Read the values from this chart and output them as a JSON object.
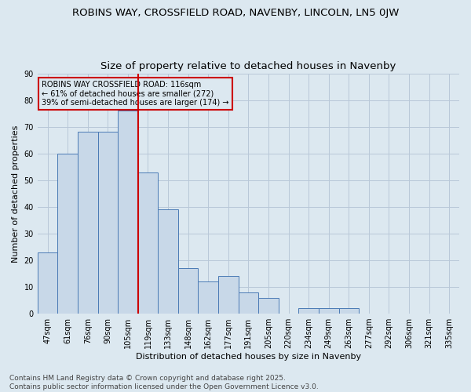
{
  "title1": "ROBINS WAY, CROSSFIELD ROAD, NAVENBY, LINCOLN, LN5 0JW",
  "title2": "Size of property relative to detached houses in Navenby",
  "xlabel": "Distribution of detached houses by size in Navenby",
  "ylabel": "Number of detached properties",
  "bar_labels": [
    "47sqm",
    "61sqm",
    "76sqm",
    "90sqm",
    "105sqm",
    "119sqm",
    "133sqm",
    "148sqm",
    "162sqm",
    "177sqm",
    "191sqm",
    "205sqm",
    "220sqm",
    "234sqm",
    "249sqm",
    "263sqm",
    "277sqm",
    "292sqm",
    "306sqm",
    "321sqm",
    "335sqm"
  ],
  "bar_values": [
    23,
    60,
    68,
    68,
    76,
    53,
    39,
    17,
    12,
    14,
    8,
    6,
    0,
    2,
    2,
    2,
    0,
    0,
    0,
    0,
    0
  ],
  "bar_color": "#c8d8e8",
  "bar_edge_color": "#4a7ab5",
  "reference_line_color": "#cc0000",
  "annotation_text": "ROBINS WAY CROSSFIELD ROAD: 116sqm\n← 61% of detached houses are smaller (272)\n39% of semi-detached houses are larger (174) →",
  "annotation_box_color": "#cc0000",
  "annotation_text_color": "#000000",
  "ylim": [
    0,
    90
  ],
  "yticks": [
    0,
    10,
    20,
    30,
    40,
    50,
    60,
    70,
    80,
    90
  ],
  "grid_color": "#b8c8d8",
  "background_color": "#dce8f0",
  "footer_text": "Contains HM Land Registry data © Crown copyright and database right 2025.\nContains public sector information licensed under the Open Government Licence v3.0.",
  "title1_fontsize": 9.5,
  "title2_fontsize": 9.5,
  "axis_label_fontsize": 8,
  "tick_fontsize": 7,
  "annotation_fontsize": 7,
  "footer_fontsize": 6.5
}
